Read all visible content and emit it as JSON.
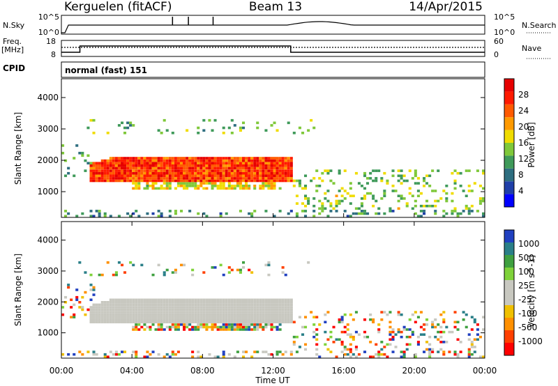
{
  "header": {
    "station": "Kerguelen (fitACF)",
    "beam": "Beam 13",
    "date": "14/Apr/2015"
  },
  "noise_panel": {
    "left_label": "N.Sky",
    "right_label": "N.Search",
    "left_ticks": [
      "10^5",
      "10^0"
    ],
    "right_ticks": [
      "10^5",
      "10^0"
    ]
  },
  "freq_panel": {
    "left_label_1": "Freq.",
    "left_label_2": "[MHz]",
    "left_ticks": [
      "18",
      "8"
    ],
    "right_label": "Nave",
    "right_ticks": [
      "60",
      "0"
    ]
  },
  "cpid": {
    "label": "CPID",
    "value": "normal (fast) 151"
  },
  "colors": {
    "power": [
      "#0000ff",
      "#1f3fa8",
      "#2e6e80",
      "#3f9a5a",
      "#7fc83a",
      "#f0dc00",
      "#ff9a00",
      "#ff5a00",
      "#ff1a00",
      "#e60000"
    ],
    "velocity": [
      "#2040c0",
      "#2a7f88",
      "#3fa040",
      "#7fd23a",
      "#c8c8c0",
      "#c8c8c0",
      "#f0c000",
      "#ff9000",
      "#ff4000",
      "#ff0000"
    ]
  },
  "chart_data": [
    {
      "type": "heatmap",
      "name": "power",
      "ylabel": "Slant Range [km]",
      "yticks": [
        1000,
        2000,
        3000,
        4000
      ],
      "ylim": [
        180,
        4600
      ],
      "xticks": [
        "00:00",
        "04:00",
        "08:00",
        "12:00",
        "16:00",
        "20:00",
        "00:00"
      ],
      "xlim_hours": [
        0,
        24
      ],
      "colorbar": {
        "label": "Power [dB]",
        "ticks": [
          "4",
          "8",
          "12",
          "16",
          "20",
          "24",
          "28"
        ],
        "range": [
          0,
          30
        ]
      }
    },
    {
      "type": "heatmap",
      "name": "velocity",
      "ylabel": "Slant Range [km]",
      "yticks": [
        1000,
        2000,
        3000,
        4000
      ],
      "ylim": [
        180,
        4600
      ],
      "xticks": [
        "00:00",
        "04:00",
        "08:00",
        "12:00",
        "16:00",
        "20:00",
        "00:00"
      ],
      "xlabel": "Time UT",
      "xlim_hours": [
        0,
        24
      ],
      "colorbar": {
        "label": "Velocity [m s^-1]",
        "ticks": [
          "1000",
          "500",
          "100",
          "25",
          "-25",
          "-100",
          "-500",
          "-1000"
        ]
      }
    }
  ]
}
